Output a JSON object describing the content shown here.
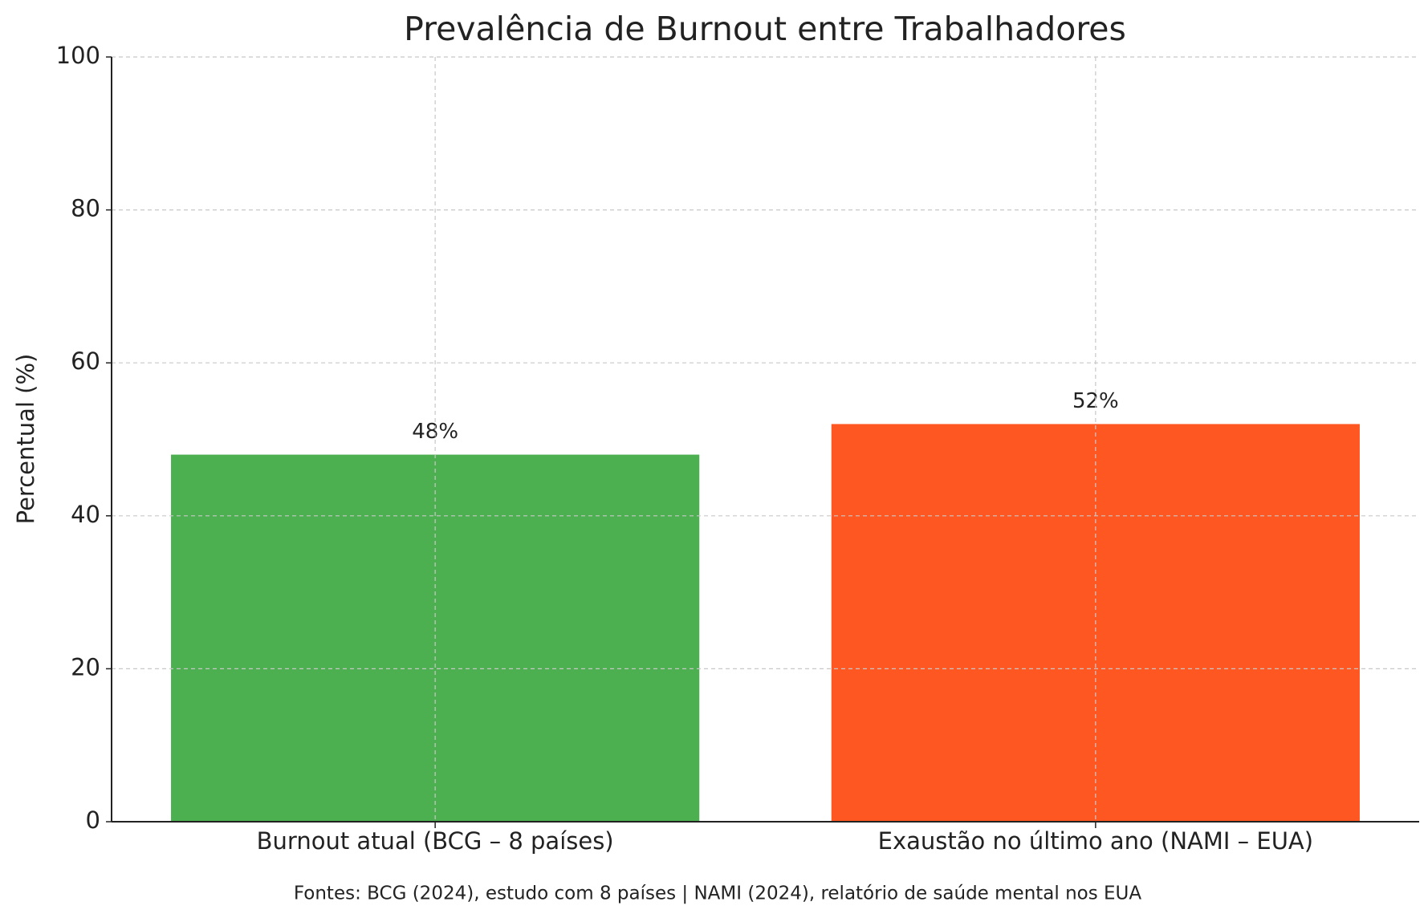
{
  "chart_data": {
    "type": "bar",
    "title": "Prevalência de Burnout entre Trabalhadores",
    "y_label": "Percentual (%)",
    "source": "Fontes: BCG (2024), estudo com 8 países | NAMI (2024), relatório de saúde mental nos EUA",
    "categories": [
      "Burnout atual (BCG – 8 países)",
      "Exaustão no último ano (NAMI – EUA)"
    ],
    "values": [
      48,
      52
    ],
    "value_labels": [
      "48%",
      "52%"
    ],
    "colors": [
      "#4caf50",
      "#ff5722"
    ],
    "ylim": [
      0,
      100
    ],
    "yticks": [
      0,
      20,
      40,
      60,
      80,
      100
    ],
    "grid": true
  }
}
